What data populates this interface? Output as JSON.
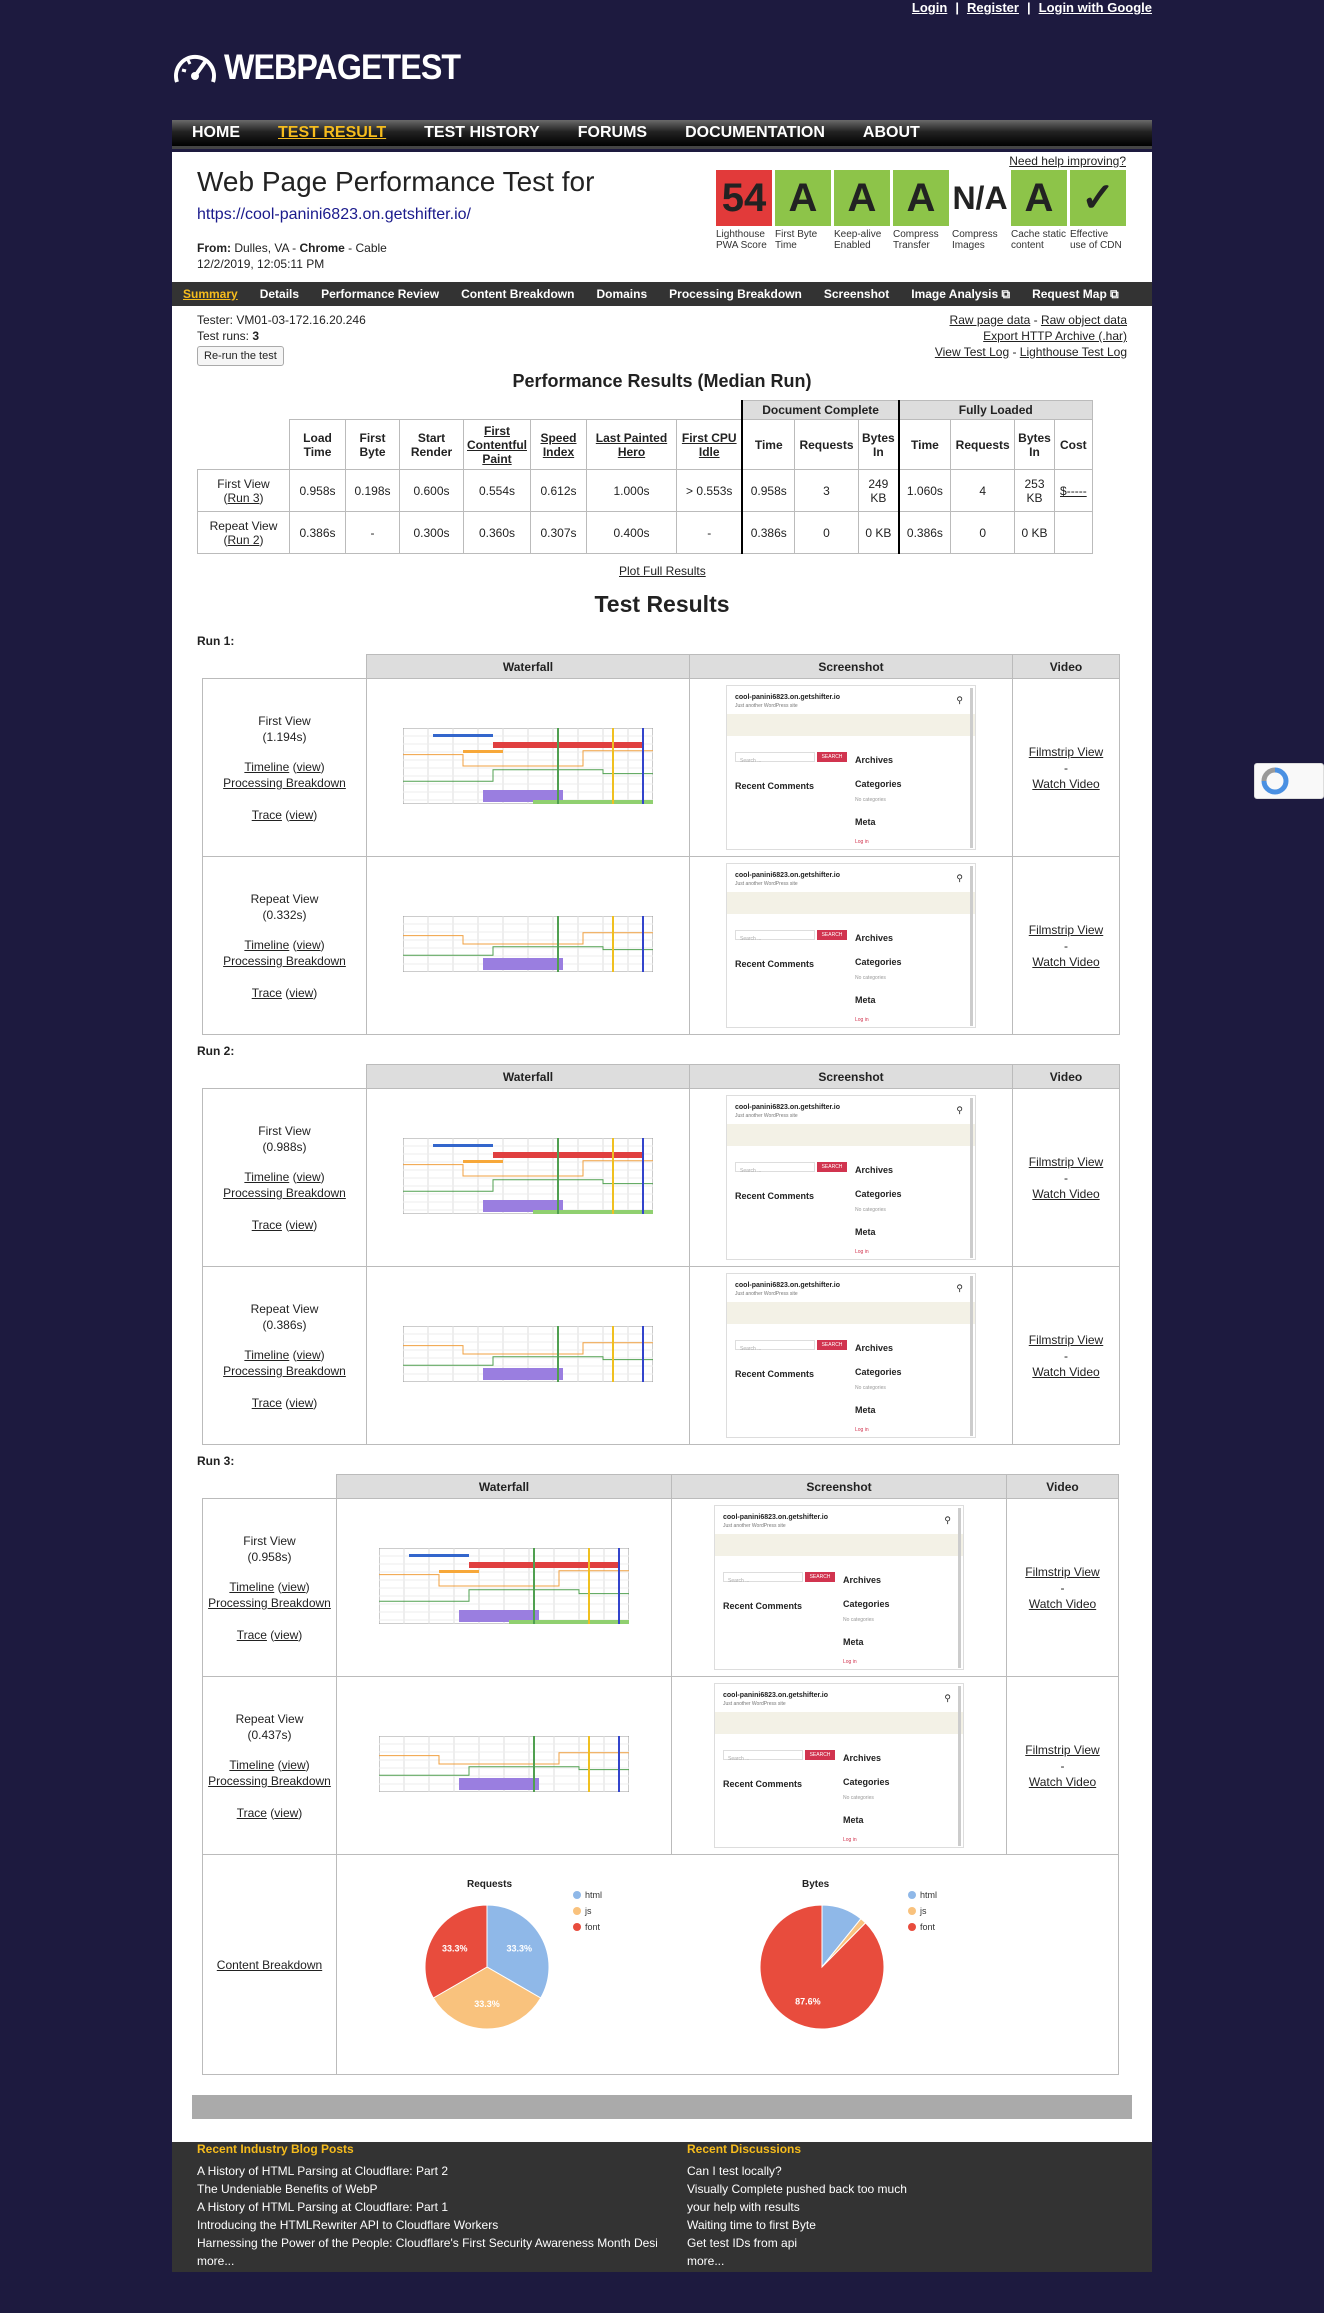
{
  "top_links": [
    "Login",
    "Register",
    "Login with Google"
  ],
  "logo_text": "WEBPAGETEST",
  "nav": [
    "HOME",
    "TEST RESULT",
    "TEST HISTORY",
    "FORUMS",
    "DOCUMENTATION",
    "ABOUT"
  ],
  "header": {
    "title": "Web Page Performance Test for",
    "url": "https://cool-panini6823.on.getshifter.io/",
    "from_label": "From:",
    "from_value": "Dulles, VA - ",
    "browser": "Chrome",
    "connection": " - Cable",
    "date": "12/2/2019, 12:05:11 PM",
    "help": "Need help improving?"
  },
  "grades": [
    {
      "value": "54",
      "caption": "Lighthouse PWA Score",
      "color": "#e23a3a"
    },
    {
      "value": "A",
      "caption": "First Byte Time",
      "color": "#8dc449"
    },
    {
      "value": "A",
      "caption": "Keep-alive Enabled",
      "color": "#8dc449"
    },
    {
      "value": "A",
      "caption": "Compress Transfer",
      "color": "#8dc449"
    },
    {
      "value": "N/A",
      "caption": "Compress Images",
      "color": "#ffffff"
    },
    {
      "value": "A",
      "caption": "Cache static content",
      "color": "#8dc449"
    },
    {
      "value": "✓",
      "caption": "Effective use of CDN",
      "color": "#8dc449"
    }
  ],
  "subnav": [
    "Summary",
    "Details",
    "Performance Review",
    "Content Breakdown",
    "Domains",
    "Processing Breakdown",
    "Screenshot",
    "Image Analysis",
    "Request Map"
  ],
  "tester": {
    "label": "Tester: VM01-03-172.16.20.246",
    "runs_label": "Test runs: ",
    "runs": "3",
    "rerun": "Re-run the test"
  },
  "raw_links": {
    "raw_page": "Raw page data",
    "raw_object": "Raw object data",
    "har": "Export HTTP Archive (.har)",
    "test_log": "View Test Log",
    "lh_log": "Lighthouse Test Log"
  },
  "perf": {
    "title": "Performance Results (Median Run)",
    "group_doc": "Document Complete",
    "group_full": "Fully Loaded",
    "headers": [
      "Load Time",
      "First Byte",
      "Start Render",
      "First Contentful Paint",
      "Speed Index",
      "Last Painted Hero",
      "First CPU Idle",
      "Time",
      "Requests",
      "Bytes In",
      "Time",
      "Requests",
      "Bytes In",
      "Cost"
    ],
    "rows": [
      {
        "label": "First View",
        "run": "Run 3",
        "values": [
          "0.958s",
          "0.198s",
          "0.600s",
          "0.554s",
          "0.612s",
          "1.000s",
          "> 0.553s",
          "0.958s",
          "3",
          "249 KB",
          "1.060s",
          "4",
          "253 KB",
          "$-----"
        ]
      },
      {
        "label": "Repeat View",
        "run": "Run 2",
        "values": [
          "0.386s",
          "-",
          "0.300s",
          "0.360s",
          "0.307s",
          "0.400s",
          "-",
          "0.386s",
          "0",
          "0 KB",
          "0.386s",
          "0",
          "0 KB",
          ""
        ]
      }
    ],
    "plot_link": "Plot Full Results"
  },
  "test_results_title": "Test Results",
  "col_headers": {
    "waterfall": "Waterfall",
    "screenshot": "Screenshot",
    "video": "Video"
  },
  "common": {
    "timeline": "Timeline",
    "view": "view",
    "processing": "Processing Breakdown",
    "trace": "Trace",
    "filmstrip": "Filmstrip View",
    "dash": "-",
    "watch": "Watch Video",
    "content_breakdown": "Content Breakdown"
  },
  "shot": {
    "site": "cool-panini6823.on.getshifter.io",
    "sub": "Just another WordPress site",
    "search": "Search ...",
    "search_btn": "SEARCH",
    "archives": "Archives",
    "categories": "Categories",
    "recent": "Recent Comments",
    "nocat": "No categories",
    "meta": "Meta",
    "login": "Log in"
  },
  "runs": [
    {
      "label": "Run 1:",
      "first": {
        "name": "First View",
        "time": "(1.194s)"
      },
      "repeat": {
        "name": "Repeat View",
        "time": "(0.332s)"
      }
    },
    {
      "label": "Run 2:",
      "first": {
        "name": "First View",
        "time": "(0.988s)"
      },
      "repeat": {
        "name": "Repeat View",
        "time": "(0.386s)"
      }
    },
    {
      "label": "Run 3:",
      "first": {
        "name": "First View",
        "time": "(0.958s)"
      },
      "repeat": {
        "name": "Repeat View",
        "time": "(0.437s)"
      }
    }
  ],
  "chart_data": [
    {
      "type": "pie",
      "title": "Requests",
      "categories": [
        "html",
        "js",
        "font"
      ],
      "values": [
        33.3,
        33.3,
        33.3
      ],
      "colors": [
        "#8fb8e8",
        "#f9c27d",
        "#e84c3d"
      ],
      "legend": "right"
    },
    {
      "type": "pie",
      "title": "Bytes",
      "categories": [
        "html",
        "js",
        "font"
      ],
      "values": [
        10.8,
        1.6,
        87.6
      ],
      "colors": [
        "#8fb8e8",
        "#f9c27d",
        "#e84c3d"
      ],
      "legend": "right",
      "labels": [
        "",
        "",
        "87.6%"
      ]
    }
  ],
  "footer": {
    "blog_title": "Recent Industry Blog Posts",
    "blog": [
      "A History of HTML Parsing at Cloudflare: Part 2",
      "The Undeniable Benefits of WebP",
      "A History of HTML Parsing at Cloudflare: Part 1",
      "Introducing the HTMLRewriter API to Cloudflare Workers",
      "Harnessing the Power of the People: Cloudflare's First Security Awareness Month Desig",
      "more..."
    ],
    "disc_title": "Recent Discussions",
    "disc": [
      "Can I test locally?",
      "Visually Complete pushed back too much",
      "your help with results",
      "Waiting time to first Byte",
      "Get test IDs from api",
      "more..."
    ]
  }
}
